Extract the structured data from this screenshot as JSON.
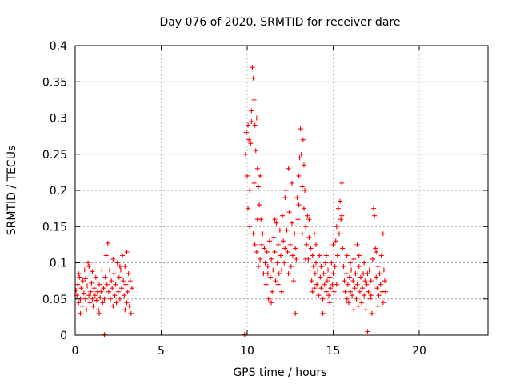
{
  "chart_data": {
    "type": "scatter",
    "title": "Day 076 of 2020, SRMTID for receiver dare",
    "xlabel": "GPS time / hours",
    "ylabel": "SRMTID / TECUs",
    "xlim": [
      0,
      24
    ],
    "ylim": [
      0,
      0.4
    ],
    "xticks": [
      0,
      5,
      10,
      15,
      20
    ],
    "xtick_labels": [
      "0",
      "5",
      "10",
      "15",
      "20"
    ],
    "yticks": [
      0,
      0.05,
      0.1,
      0.15,
      0.2,
      0.25,
      0.3,
      0.35,
      0.4
    ],
    "ytick_labels": [
      "0",
      "0.05",
      "0.1",
      "0.15",
      "0.2",
      "0.25",
      "0.3",
      "0.35",
      "0.4"
    ],
    "grid": true,
    "marker": "+",
    "color": "#ff0000",
    "series": [
      {
        "name": "SRMTID",
        "points": [
          [
            0.05,
            0.062
          ],
          [
            0.1,
            0.055
          ],
          [
            0.15,
            0.07
          ],
          [
            0.2,
            0.045
          ],
          [
            0.25,
            0.08
          ],
          [
            0.3,
            0.05
          ],
          [
            0.35,
            0.065
          ],
          [
            0.4,
            0.04
          ],
          [
            0.45,
            0.075
          ],
          [
            0.5,
            0.058
          ],
          [
            0.55,
            0.09
          ],
          [
            0.6,
            0.05
          ],
          [
            0.65,
            0.035
          ],
          [
            0.7,
            0.068
          ],
          [
            0.75,
            0.1
          ],
          [
            0.8,
            0.055
          ],
          [
            0.85,
            0.045
          ],
          [
            0.9,
            0.06
          ],
          [
            0.95,
            0.072
          ],
          [
            1.0,
            0.05
          ],
          [
            1.05,
            0.04
          ],
          [
            1.1,
            0.065
          ],
          [
            1.15,
            0.055
          ],
          [
            1.2,
            0.08
          ],
          [
            1.25,
            0.048
          ],
          [
            1.3,
            0.06
          ],
          [
            1.35,
            0.035
          ],
          [
            1.4,
            0.07
          ],
          [
            1.45,
            0.052
          ],
          [
            1.5,
            0.06
          ],
          [
            1.55,
            0.09
          ],
          [
            1.6,
            0.045
          ],
          [
            1.65,
            0.065
          ],
          [
            1.7,
            0.05
          ],
          [
            1.75,
            0.08
          ],
          [
            1.8,
            0.11
          ],
          [
            1.85,
            0.07
          ],
          [
            1.9,
            0.127
          ],
          [
            1.95,
            0.06
          ],
          [
            2.0,
            0.09
          ],
          [
            2.05,
            0.05
          ],
          [
            2.1,
            0.075
          ],
          [
            2.15,
            0.065
          ],
          [
            2.2,
            0.04
          ],
          [
            2.25,
            0.085
          ],
          [
            2.3,
            0.055
          ],
          [
            2.35,
            0.07
          ],
          [
            2.4,
            0.045
          ],
          [
            2.45,
            0.1
          ],
          [
            2.5,
            0.06
          ],
          [
            2.55,
            0.08
          ],
          [
            2.6,
            0.05
          ],
          [
            2.65,
            0.09
          ],
          [
            2.7,
            0.065
          ],
          [
            2.75,
            0.11
          ],
          [
            2.8,
            0.075
          ],
          [
            2.85,
            0.055
          ],
          [
            2.9,
            0.095
          ],
          [
            2.95,
            0.07
          ],
          [
            3.0,
            0.115
          ],
          [
            3.05,
            0.06
          ],
          [
            3.1,
            0.085
          ],
          [
            3.15,
            0.04
          ],
          [
            3.2,
            0.075
          ],
          [
            3.25,
            0.03
          ],
          [
            3.3,
            0.065
          ],
          [
            0.2,
            0.085
          ],
          [
            0.6,
            0.078
          ],
          [
            1.0,
            0.088
          ],
          [
            1.4,
            0.03
          ],
          [
            2.2,
            0.105
          ],
          [
            2.6,
            0.095
          ],
          [
            3.0,
            0.045
          ],
          [
            1.7,
            0.001
          ],
          [
            0.3,
            0.03
          ],
          [
            0.8,
            0.095
          ],
          [
            2.9,
            0.035
          ],
          [
            9.85,
            0.001
          ],
          [
            9.9,
            0.25
          ],
          [
            9.95,
            0.28
          ],
          [
            10.0,
            0.22
          ],
          [
            10.05,
            0.29
          ],
          [
            10.1,
            0.27
          ],
          [
            10.15,
            0.2
          ],
          [
            10.2,
            0.265
          ],
          [
            10.25,
            0.31
          ],
          [
            10.3,
            0.37
          ],
          [
            10.35,
            0.355
          ],
          [
            10.4,
            0.325
          ],
          [
            10.45,
            0.29
          ],
          [
            10.5,
            0.255
          ],
          [
            10.55,
            0.3
          ],
          [
            10.6,
            0.23
          ],
          [
            10.65,
            0.205
          ],
          [
            10.7,
            0.18
          ],
          [
            10.75,
            0.22
          ],
          [
            10.8,
            0.16
          ],
          [
            10.05,
            0.175
          ],
          [
            10.15,
            0.15
          ],
          [
            10.35,
            0.14
          ],
          [
            10.45,
            0.125
          ],
          [
            10.55,
            0.115
          ],
          [
            10.65,
            0.095
          ],
          [
            10.75,
            0.105
          ],
          [
            10.85,
            0.125
          ],
          [
            10.95,
            0.085
          ],
          [
            11.05,
            0.1
          ],
          [
            11.1,
            0.07
          ],
          [
            11.15,
            0.115
          ],
          [
            11.2,
            0.095
          ],
          [
            11.25,
            0.05
          ],
          [
            11.3,
            0.13
          ],
          [
            11.35,
            0.08
          ],
          [
            11.4,
            0.105
          ],
          [
            11.45,
            0.06
          ],
          [
            11.5,
            0.09
          ],
          [
            11.55,
            0.135
          ],
          [
            11.6,
            0.115
          ],
          [
            11.65,
            0.075
          ],
          [
            11.7,
            0.155
          ],
          [
            11.75,
            0.1
          ],
          [
            11.8,
            0.125
          ],
          [
            11.85,
            0.085
          ],
          [
            11.9,
            0.145
          ],
          [
            11.95,
            0.11
          ],
          [
            12.0,
            0.09
          ],
          [
            12.05,
            0.165
          ],
          [
            12.1,
            0.13
          ],
          [
            12.15,
            0.1
          ],
          [
            12.2,
            0.19
          ],
          [
            12.25,
            0.2
          ],
          [
            12.3,
            0.145
          ],
          [
            12.35,
            0.115
          ],
          [
            12.4,
            0.23
          ],
          [
            12.45,
            0.17
          ],
          [
            12.5,
            0.125
          ],
          [
            12.55,
            0.095
          ],
          [
            12.6,
            0.155
          ],
          [
            12.65,
            0.11
          ],
          [
            12.7,
            0.075
          ],
          [
            12.75,
            0.14
          ],
          [
            12.8,
            0.12
          ],
          [
            12.85,
            0.105
          ],
          [
            12.9,
            0.19
          ],
          [
            12.95,
            0.16
          ],
          [
            13.0,
            0.22
          ],
          [
            13.05,
            0.245
          ],
          [
            13.1,
            0.285
          ],
          [
            13.15,
            0.25
          ],
          [
            13.2,
            0.205
          ],
          [
            13.25,
            0.27
          ],
          [
            13.3,
            0.175
          ],
          [
            13.35,
            0.2
          ],
          [
            13.4,
            0.15
          ],
          [
            13.45,
            0.125
          ],
          [
            13.5,
            0.165
          ],
          [
            13.55,
            0.105
          ],
          [
            13.6,
            0.135
          ],
          [
            13.65,
            0.09
          ],
          [
            13.7,
            0.12
          ],
          [
            13.75,
            0.075
          ],
          [
            13.8,
            0.11
          ],
          [
            13.85,
            0.095
          ],
          [
            13.9,
            0.065
          ],
          [
            13.95,
            0.085
          ],
          [
            14.0,
            0.1
          ],
          [
            14.05,
            0.07
          ],
          [
            14.1,
            0.09
          ],
          [
            14.15,
            0.055
          ],
          [
            14.2,
            0.11
          ],
          [
            14.25,
            0.08
          ],
          [
            14.3,
            0.065
          ],
          [
            14.35,
            0.095
          ],
          [
            14.4,
            0.05
          ],
          [
            14.45,
            0.085
          ],
          [
            14.5,
            0.07
          ],
          [
            14.55,
            0.1
          ],
          [
            14.6,
            0.06
          ],
          [
            14.65,
            0.075
          ],
          [
            14.7,
            0.09
          ],
          [
            14.75,
            0.055
          ],
          [
            14.8,
            0.08
          ],
          [
            14.85,
            0.065
          ],
          [
            14.9,
            0.1
          ],
          [
            14.95,
            0.07
          ],
          [
            15.0,
            0.085
          ],
          [
            15.05,
            0.06
          ],
          [
            15.1,
            0.095
          ],
          [
            15.15,
            0.13
          ],
          [
            15.2,
            0.15
          ],
          [
            15.25,
            0.11
          ],
          [
            15.3,
            0.175
          ],
          [
            15.35,
            0.14
          ],
          [
            15.4,
            0.185
          ],
          [
            15.45,
            0.16
          ],
          [
            15.5,
            0.21
          ],
          [
            15.55,
            0.12
          ],
          [
            15.6,
            0.095
          ],
          [
            15.65,
            0.075
          ],
          [
            15.7,
            0.06
          ],
          [
            15.75,
            0.085
          ],
          [
            15.8,
            0.05
          ],
          [
            15.85,
            0.07
          ],
          [
            15.9,
            0.045
          ],
          [
            15.95,
            0.08
          ],
          [
            16.0,
            0.06
          ],
          [
            16.05,
            0.09
          ],
          [
            16.1,
            0.055
          ],
          [
            16.15,
            0.075
          ],
          [
            16.2,
            0.105
          ],
          [
            16.25,
            0.065
          ],
          [
            16.3,
            0.085
          ],
          [
            16.35,
            0.05
          ],
          [
            16.4,
            0.07
          ],
          [
            16.45,
            0.04
          ],
          [
            16.5,
            0.095
          ],
          [
            16.55,
            0.06
          ],
          [
            16.6,
            0.08
          ],
          [
            16.65,
            0.045
          ],
          [
            16.7,
            0.065
          ],
          [
            16.75,
            0.085
          ],
          [
            16.8,
            0.055
          ],
          [
            16.85,
            0.075
          ],
          [
            16.9,
            0.035
          ],
          [
            16.95,
            0.07
          ],
          [
            17.0,
            0.005
          ],
          [
            17.05,
            0.06
          ],
          [
            17.1,
            0.09
          ],
          [
            17.15,
            0.05
          ],
          [
            17.2,
            0.075
          ],
          [
            17.25,
            0.03
          ],
          [
            17.3,
            0.105
          ],
          [
            17.35,
            0.175
          ],
          [
            17.4,
            0.165
          ],
          [
            17.45,
            0.12
          ],
          [
            17.5,
            0.08
          ],
          [
            17.55,
            0.065
          ],
          [
            17.6,
            0.095
          ],
          [
            17.65,
            0.055
          ],
          [
            17.7,
            0.085
          ],
          [
            17.75,
            0.07
          ],
          [
            17.8,
            0.11
          ],
          [
            17.85,
            0.06
          ],
          [
            17.9,
            0.14
          ],
          [
            17.95,
            0.09
          ],
          [
            18.0,
            0.075
          ],
          [
            18.05,
            0.06
          ],
          [
            10.25,
            0.295
          ],
          [
            10.4,
            0.21
          ],
          [
            10.6,
            0.16
          ],
          [
            11.0,
            0.12
          ],
          [
            11.4,
            0.045
          ],
          [
            12.2,
            0.12
          ],
          [
            12.6,
            0.21
          ],
          [
            13.0,
            0.18
          ],
          [
            13.3,
            0.235
          ],
          [
            13.6,
            0.16
          ],
          [
            14.0,
            0.125
          ],
          [
            14.3,
            0.095
          ],
          [
            14.6,
            0.11
          ],
          [
            15.0,
            0.125
          ],
          [
            15.5,
            0.165
          ],
          [
            16.0,
            0.1
          ],
          [
            16.5,
            0.11
          ],
          [
            17.0,
            0.085
          ],
          [
            17.5,
            0.115
          ],
          [
            17.9,
            0.045
          ],
          [
            11.2,
            0.085
          ],
          [
            11.8,
            0.07
          ],
          [
            12.4,
            0.085
          ],
          [
            13.2,
            0.14
          ],
          [
            13.8,
            0.06
          ],
          [
            14.4,
            0.03
          ],
          [
            15.2,
            0.07
          ],
          [
            15.8,
            0.11
          ],
          [
            16.4,
            0.125
          ],
          [
            17.2,
            0.055
          ],
          [
            10.9,
            0.14
          ],
          [
            11.6,
            0.16
          ],
          [
            12.8,
            0.03
          ],
          [
            13.4,
            0.105
          ],
          [
            14.8,
            0.045
          ],
          [
            16.2,
            0.035
          ],
          [
            16.8,
            0.1
          ],
          [
            17.6,
            0.04
          ],
          [
            12.0,
            0.06
          ],
          [
            13.9,
            0.14
          ]
        ]
      }
    ]
  }
}
